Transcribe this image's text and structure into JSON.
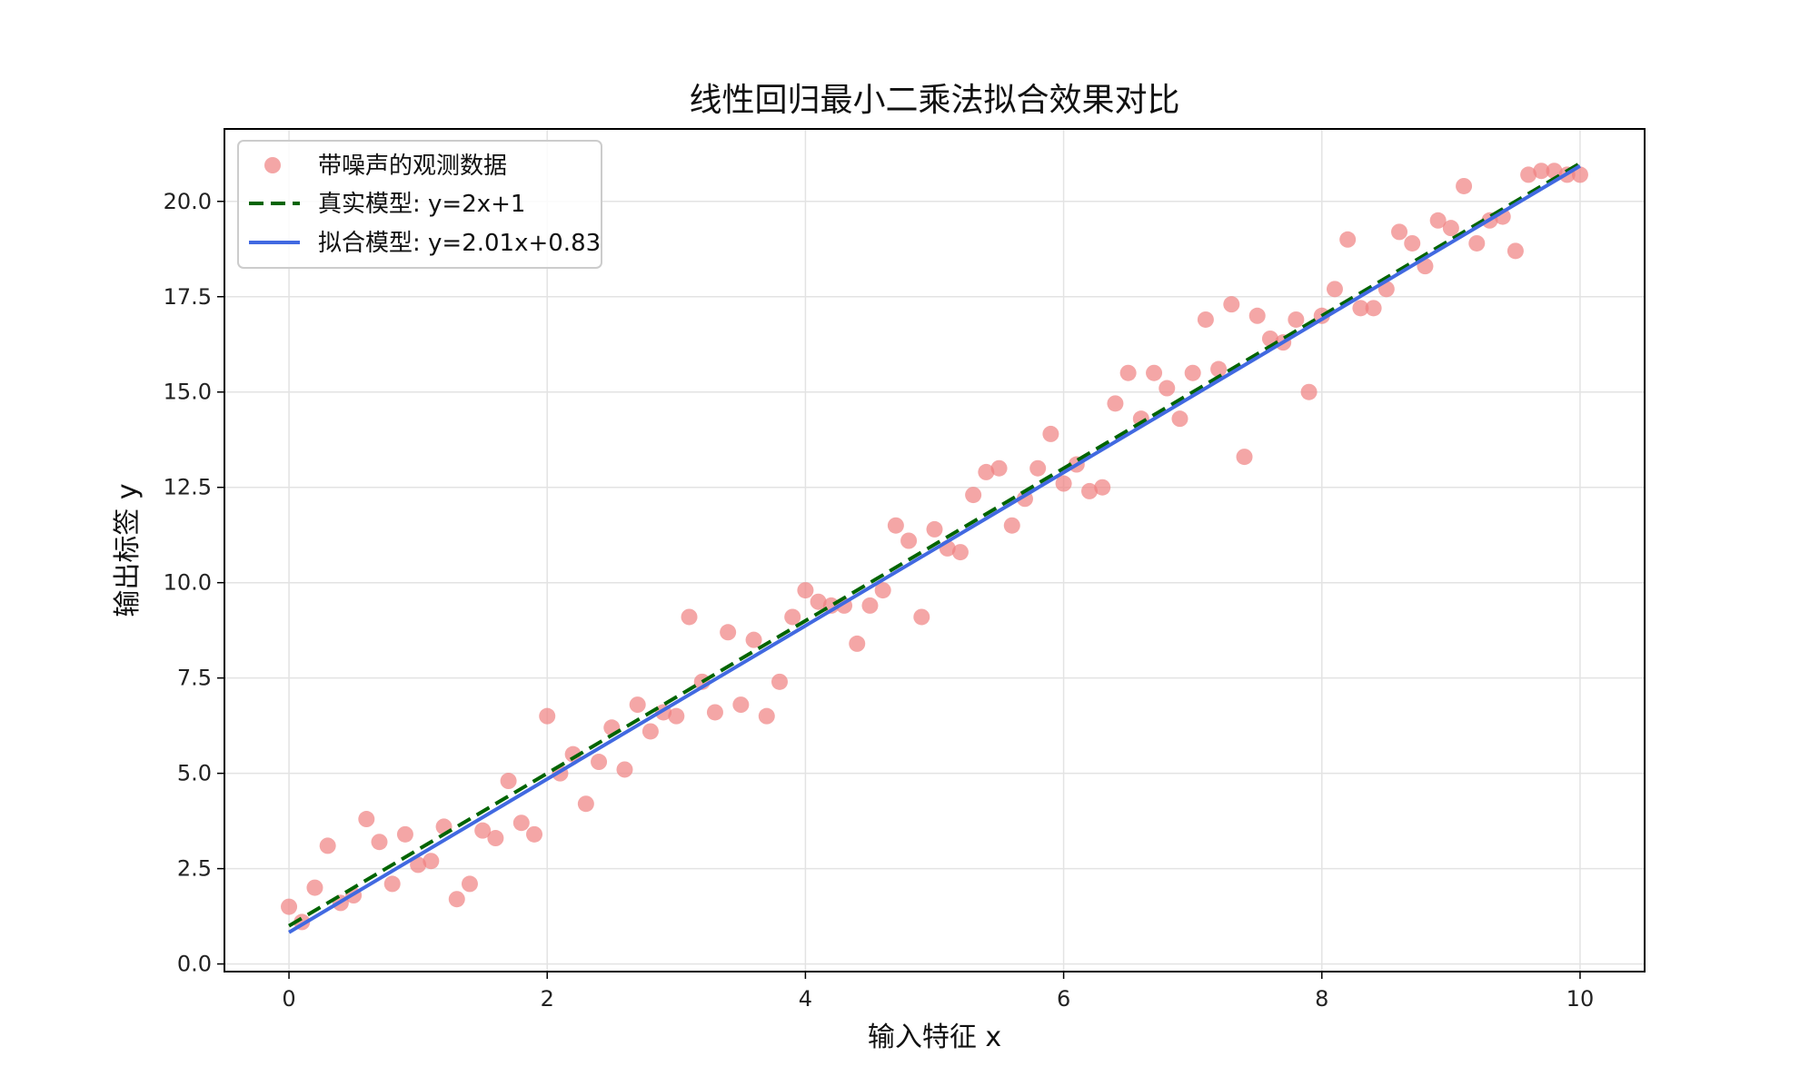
{
  "chart_data": {
    "type": "scatter",
    "title": "线性回归最小二乘法拟合效果对比",
    "xlabel": "输入特征 x",
    "ylabel": "输出标签 y",
    "xlim": [
      -0.5,
      10.5
    ],
    "ylim": [
      -0.2,
      21.9
    ],
    "xticks": [
      0,
      2,
      4,
      6,
      8,
      10
    ],
    "xtick_labels": [
      "0",
      "2",
      "4",
      "6",
      "8",
      "10"
    ],
    "yticks": [
      0,
      2.5,
      5,
      7.5,
      10,
      12.5,
      15,
      17.5,
      20
    ],
    "ytick_labels": [
      "0.0",
      "2.5",
      "5.0",
      "7.5",
      "10.0",
      "12.5",
      "15.0",
      "17.5",
      "20.0"
    ],
    "grid": true,
    "legend_position": "top-left",
    "scatter": {
      "name": "带噪声的观测数据",
      "color": "#f08080",
      "x": [
        0.0,
        0.1,
        0.2,
        0.3,
        0.4,
        0.5,
        0.6,
        0.7,
        0.8,
        0.9,
        1.0,
        1.1,
        1.2,
        1.3,
        1.4,
        1.5,
        1.6,
        1.7,
        1.8,
        1.9,
        2.0,
        2.1,
        2.2,
        2.3,
        2.4,
        2.5,
        2.6,
        2.7,
        2.8,
        2.9,
        3.0,
        3.1,
        3.2,
        3.3,
        3.4,
        3.5,
        3.6,
        3.7,
        3.8,
        3.9,
        4.0,
        4.1,
        4.2,
        4.3,
        4.4,
        4.5,
        4.6,
        4.7,
        4.8,
        4.9,
        5.0,
        5.1,
        5.2,
        5.3,
        5.4,
        5.5,
        5.6,
        5.7,
        5.8,
        5.9,
        6.0,
        6.1,
        6.2,
        6.3,
        6.4,
        6.5,
        6.6,
        6.7,
        6.8,
        6.9,
        7.0,
        7.1,
        7.2,
        7.3,
        7.4,
        7.5,
        7.6,
        7.7,
        7.8,
        7.9,
        8.0,
        8.1,
        8.2,
        8.3,
        8.4,
        8.5,
        8.6,
        8.7,
        8.8,
        8.9,
        9.0,
        9.1,
        9.2,
        9.3,
        9.4,
        9.5,
        9.6,
        9.7,
        9.8,
        9.9,
        10.0
      ],
      "y": [
        1.5,
        1.1,
        2.0,
        3.1,
        1.6,
        1.8,
        3.8,
        3.2,
        2.1,
        3.4,
        2.6,
        2.7,
        3.6,
        1.7,
        2.1,
        3.5,
        3.3,
        4.8,
        3.7,
        3.4,
        6.5,
        5.0,
        5.5,
        4.2,
        5.3,
        6.2,
        5.1,
        6.8,
        6.1,
        6.6,
        6.5,
        9.1,
        7.4,
        6.6,
        8.7,
        6.8,
        8.5,
        6.5,
        7.4,
        9.1,
        9.8,
        9.5,
        9.4,
        9.4,
        8.4,
        9.4,
        9.8,
        11.5,
        11.1,
        9.1,
        11.4,
        10.9,
        10.8,
        12.3,
        12.9,
        13.0,
        11.5,
        12.2,
        13.0,
        13.9,
        12.6,
        13.1,
        12.4,
        12.5,
        14.7,
        15.5,
        14.3,
        15.5,
        15.1,
        14.3,
        15.5,
        16.9,
        15.6,
        17.3,
        13.3,
        17.0,
        16.4,
        16.3,
        16.9,
        15.0,
        17.0,
        17.7,
        19.0,
        17.2,
        17.2,
        17.7,
        19.2,
        18.9,
        18.3,
        19.5,
        19.3,
        20.4,
        18.9,
        19.5,
        19.6,
        18.7,
        20.7,
        20.8,
        20.8,
        20.7,
        20.7
      ]
    },
    "lines": [
      {
        "name": "真实模型: y=2x+1",
        "color": "#006400",
        "style": "dashed",
        "x": [
          0,
          10
        ],
        "y": [
          1,
          21
        ]
      },
      {
        "name": "拟合模型: y=2.01x+0.83",
        "color": "#4169e1",
        "style": "solid",
        "x": [
          0,
          10
        ],
        "y": [
          0.83,
          20.93
        ]
      }
    ]
  }
}
